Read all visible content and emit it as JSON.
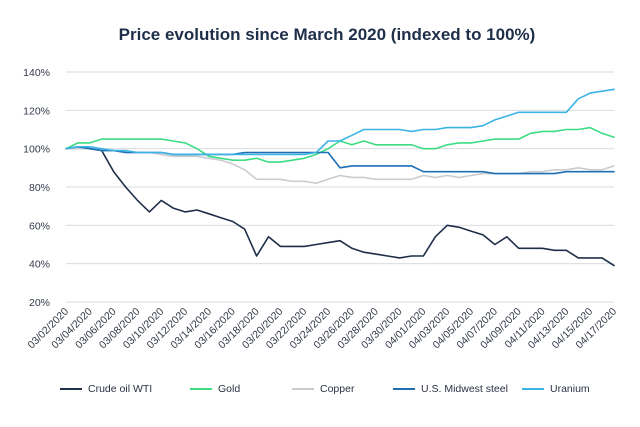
{
  "chart_data": {
    "type": "line",
    "title": "Price evolution since March 2020 (indexed to 100%)",
    "xlabel": "",
    "ylabel": "",
    "ylim": [
      20,
      140
    ],
    "y_ticks": [
      "20%",
      "40%",
      "60%",
      "80%",
      "100%",
      "120%",
      "140%"
    ],
    "x_tick_labels": [
      "03/02/2020",
      "03/04/2020",
      "03/06/2020",
      "03/08/2020",
      "03/10/2020",
      "03/12/2020",
      "03/14/2020",
      "03/16/2020",
      "03/18/2020",
      "03/20/2020",
      "03/22/2020",
      "03/24/2020",
      "03/26/2020",
      "03/28/2020",
      "03/30/2020",
      "04/01/2020",
      "04/03/2020",
      "04/05/2020",
      "04/07/2020",
      "04/09/2020",
      "04/11/2020",
      "04/13/2020",
      "04/15/2020",
      "04/17/2020"
    ],
    "grid": true,
    "legend_position": "bottom",
    "x": [
      "03/02/2020",
      "03/03/2020",
      "03/04/2020",
      "03/05/2020",
      "03/06/2020",
      "03/07/2020",
      "03/08/2020",
      "03/09/2020",
      "03/10/2020",
      "03/11/2020",
      "03/12/2020",
      "03/13/2020",
      "03/14/2020",
      "03/15/2020",
      "03/16/2020",
      "03/17/2020",
      "03/18/2020",
      "03/19/2020",
      "03/20/2020",
      "03/21/2020",
      "03/22/2020",
      "03/23/2020",
      "03/24/2020",
      "03/25/2020",
      "03/26/2020",
      "03/27/2020",
      "03/28/2020",
      "03/29/2020",
      "03/30/2020",
      "03/31/2020",
      "04/01/2020",
      "04/02/2020",
      "04/03/2020",
      "04/04/2020",
      "04/05/2020",
      "04/06/2020",
      "04/07/2020",
      "04/08/2020",
      "04/09/2020",
      "04/10/2020",
      "04/11/2020",
      "04/12/2020",
      "04/13/2020",
      "04/14/2020",
      "04/15/2020",
      "04/16/2020",
      "04/17/2020"
    ],
    "series": [
      {
        "name": "Crude oil WTI",
        "color": "#1f2f4a",
        "values": [
          100,
          100,
          100,
          99,
          88,
          80,
          73,
          67,
          73,
          69,
          67,
          68,
          66,
          64,
          62,
          58,
          44,
          54,
          49,
          49,
          49,
          50,
          51,
          52,
          48,
          46,
          45,
          44,
          43,
          44,
          44,
          54,
          60,
          59,
          57,
          55,
          50,
          54,
          48,
          48,
          48,
          47,
          47,
          43,
          43,
          43,
          39
        ]
      },
      {
        "name": "Gold",
        "color": "#3ddc84",
        "values": [
          100,
          103,
          103,
          105,
          105,
          105,
          105,
          105,
          105,
          104,
          103,
          100,
          96,
          95,
          94,
          94,
          95,
          93,
          93,
          94,
          95,
          97,
          100,
          104,
          102,
          104,
          102,
          102,
          102,
          102,
          100,
          100,
          102,
          103,
          103,
          104,
          105,
          105,
          105,
          108,
          109,
          109,
          110,
          110,
          111,
          108,
          106
        ]
      },
      {
        "name": "Copper",
        "color": "#c9ccd1",
        "values": [
          100,
          100,
          100,
          99,
          99,
          98,
          98,
          98,
          97,
          96,
          96,
          96,
          95,
          94,
          92,
          89,
          84,
          84,
          84,
          83,
          83,
          82,
          84,
          86,
          85,
          85,
          84,
          84,
          84,
          84,
          86,
          85,
          86,
          85,
          86,
          87,
          87,
          87,
          87,
          88,
          88,
          89,
          89,
          90,
          89,
          89,
          91
        ]
      },
      {
        "name": "U.S. Midwest steel",
        "color": "#1f6fb5",
        "values": [
          100,
          101,
          100,
          99,
          99,
          98,
          98,
          98,
          98,
          97,
          97,
          97,
          97,
          97,
          97,
          98,
          98,
          98,
          98,
          98,
          98,
          98,
          98,
          90,
          91,
          91,
          91,
          91,
          91,
          91,
          88,
          88,
          88,
          88,
          88,
          88,
          87,
          87,
          87,
          87,
          87,
          87,
          88,
          88,
          88,
          88,
          88
        ]
      },
      {
        "name": "Uranium",
        "color": "#3cb4e5",
        "values": [
          100,
          101,
          101,
          100,
          99,
          99,
          98,
          98,
          98,
          97,
          97,
          97,
          97,
          97,
          97,
          97,
          97,
          97,
          97,
          97,
          97,
          98,
          104,
          104,
          107,
          110,
          110,
          110,
          110,
          109,
          110,
          110,
          111,
          111,
          111,
          112,
          115,
          117,
          119,
          119,
          119,
          119,
          119,
          126,
          129,
          130,
          131
        ]
      }
    ]
  }
}
